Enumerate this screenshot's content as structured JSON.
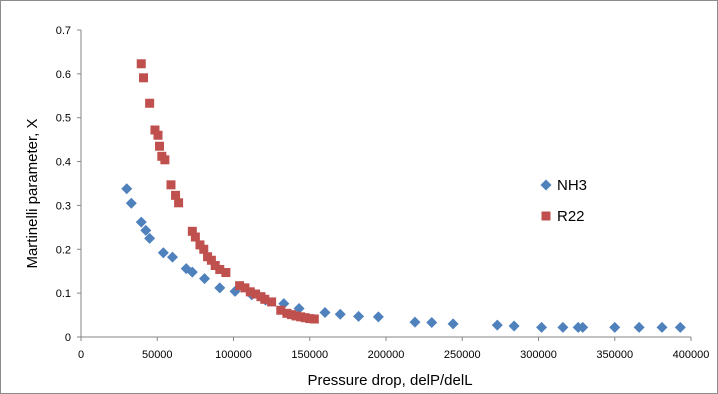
{
  "chart_data": {
    "type": "scatter",
    "xlabel": "Pressure drop, delP/delL",
    "ylabel": "Martinelli parameter, X",
    "xlim": [
      0,
      400000
    ],
    "ylim": [
      0,
      0.7
    ],
    "x_ticks": [
      0,
      50000,
      100000,
      150000,
      200000,
      250000,
      300000,
      350000,
      400000
    ],
    "y_ticks": [
      0,
      0.1,
      0.2,
      0.3,
      0.4,
      0.5,
      0.6,
      0.7
    ],
    "x_tick_labels": [
      "0",
      "50000",
      "100000",
      "150000",
      "200000",
      "250000",
      "300000",
      "350000",
      "400000"
    ],
    "y_tick_labels": [
      "0",
      "0.1",
      "0.2",
      "0.3",
      "0.4",
      "0.5",
      "0.6",
      "0.7"
    ],
    "grid": false,
    "legend_position": "right",
    "series": [
      {
        "name": "NH3",
        "color": "#4f81bd",
        "marker": "diamond",
        "points": [
          [
            30000,
            0.338
          ],
          [
            33000,
            0.305
          ],
          [
            39500,
            0.262
          ],
          [
            42500,
            0.243
          ],
          [
            45000,
            0.225
          ],
          [
            54000,
            0.192
          ],
          [
            60000,
            0.182
          ],
          [
            69000,
            0.156
          ],
          [
            73000,
            0.148
          ],
          [
            81000,
            0.133
          ],
          [
            91000,
            0.112
          ],
          [
            101000,
            0.104
          ],
          [
            112000,
            0.096
          ],
          [
            121000,
            0.084
          ],
          [
            133000,
            0.076
          ],
          [
            143000,
            0.065
          ],
          [
            160000,
            0.056
          ],
          [
            170000,
            0.052
          ],
          [
            182000,
            0.047
          ],
          [
            195000,
            0.046
          ],
          [
            219000,
            0.034
          ],
          [
            230000,
            0.033
          ],
          [
            244000,
            0.03
          ],
          [
            273000,
            0.027
          ],
          [
            284000,
            0.025
          ],
          [
            302000,
            0.022
          ],
          [
            316000,
            0.022
          ],
          [
            326000,
            0.022
          ],
          [
            329000,
            0.022
          ],
          [
            350000,
            0.022
          ],
          [
            366000,
            0.022
          ],
          [
            381000,
            0.022
          ],
          [
            393000,
            0.022
          ]
        ]
      },
      {
        "name": "R22",
        "color": "#c0504d",
        "marker": "square",
        "points": [
          [
            39500,
            0.623
          ],
          [
            41000,
            0.591
          ],
          [
            45000,
            0.533
          ],
          [
            48500,
            0.472
          ],
          [
            50500,
            0.46
          ],
          [
            51500,
            0.435
          ],
          [
            53000,
            0.412
          ],
          [
            55000,
            0.404
          ],
          [
            59000,
            0.347
          ],
          [
            62000,
            0.323
          ],
          [
            64000,
            0.306
          ],
          [
            73000,
            0.241
          ],
          [
            75000,
            0.228
          ],
          [
            78000,
            0.21
          ],
          [
            80500,
            0.2
          ],
          [
            83000,
            0.183
          ],
          [
            85500,
            0.175
          ],
          [
            88000,
            0.163
          ],
          [
            91000,
            0.154
          ],
          [
            95000,
            0.147
          ],
          [
            104000,
            0.117
          ],
          [
            107500,
            0.112
          ],
          [
            111000,
            0.103
          ],
          [
            114500,
            0.098
          ],
          [
            118000,
            0.092
          ],
          [
            120500,
            0.086
          ],
          [
            125000,
            0.08
          ],
          [
            131000,
            0.061
          ],
          [
            135000,
            0.054
          ],
          [
            138000,
            0.051
          ],
          [
            141000,
            0.048
          ],
          [
            144000,
            0.046
          ],
          [
            147000,
            0.044
          ],
          [
            150000,
            0.042
          ],
          [
            153000,
            0.041
          ]
        ]
      }
    ]
  }
}
